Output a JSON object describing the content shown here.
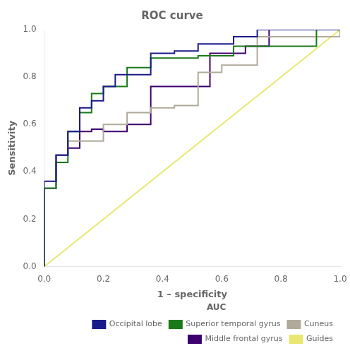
{
  "chart_data": {
    "type": "line",
    "title": "ROC curve",
    "xlabel": "1 – specificity",
    "ylabel": "Sensitivity",
    "xlim": [
      0.0,
      1.0
    ],
    "ylim": [
      0.0,
      1.0
    ],
    "xticks": [
      {
        "value": 0.0,
        "label": "0.0"
      },
      0.2,
      0.4,
      0.6,
      0.8,
      {
        "value": 1.0,
        "label": "1.0"
      }
    ],
    "yticks": [
      {
        "value": 0.0,
        "label": "0.0"
      },
      0.2,
      0.4,
      0.6,
      0.8,
      {
        "value": 1.0,
        "label": "1.0"
      }
    ],
    "grid": false,
    "legend": "lower right",
    "legend_title": "AUC",
    "series": [
      {
        "name": "Occipital lobe",
        "type": "step",
        "color": "#1a1a8c",
        "x": [
          0.0,
          0.0,
          0.04,
          0.04,
          0.08,
          0.08,
          0.12,
          0.12,
          0.16,
          0.16,
          0.2,
          0.2,
          0.24,
          0.24,
          0.36,
          0.36,
          0.44,
          0.44,
          0.52,
          0.52,
          0.64,
          0.64,
          0.72,
          0.72,
          0.84,
          0.84,
          1.0
        ],
        "values": [
          0.0,
          0.36,
          0.36,
          0.47,
          0.47,
          0.57,
          0.57,
          0.67,
          0.67,
          0.7,
          0.7,
          0.76,
          0.76,
          0.81,
          0.81,
          0.9,
          0.9,
          0.91,
          0.91,
          0.94,
          0.94,
          0.97,
          0.97,
          1.0,
          1.0,
          1.0,
          1.0
        ]
      },
      {
        "name": "Superior temporal gyrus",
        "type": "step",
        "color": "#1a7a1a",
        "x": [
          0.0,
          0.0,
          0.04,
          0.04,
          0.08,
          0.08,
          0.12,
          0.12,
          0.16,
          0.16,
          0.2,
          0.2,
          0.28,
          0.28,
          0.36,
          0.36,
          0.44,
          0.44,
          0.52,
          0.52,
          0.64,
          0.64,
          0.8,
          0.8,
          0.92,
          0.92,
          1.0
        ],
        "values": [
          0.0,
          0.33,
          0.33,
          0.44,
          0.44,
          0.57,
          0.57,
          0.65,
          0.65,
          0.73,
          0.73,
          0.76,
          0.76,
          0.84,
          0.84,
          0.88,
          0.88,
          0.88,
          0.88,
          0.89,
          0.89,
          0.93,
          0.93,
          0.93,
          0.93,
          1.0,
          1.0
        ]
      },
      {
        "name": "Cuneus",
        "type": "step",
        "color": "#b0aa99",
        "x": [
          0.0,
          0.0,
          0.04,
          0.04,
          0.08,
          0.08,
          0.12,
          0.12,
          0.2,
          0.2,
          0.28,
          0.28,
          0.36,
          0.36,
          0.44,
          0.44,
          0.52,
          0.52,
          0.6,
          0.6,
          0.72,
          0.72,
          0.8,
          0.8,
          1.0
        ],
        "values": [
          0.0,
          0.33,
          0.33,
          0.47,
          0.47,
          0.53,
          0.53,
          0.53,
          0.53,
          0.6,
          0.6,
          0.65,
          0.65,
          0.67,
          0.67,
          0.68,
          0.68,
          0.82,
          0.82,
          0.85,
          0.85,
          0.97,
          0.97,
          0.97,
          1.0
        ]
      },
      {
        "name": "Middle frontal gyrus",
        "type": "step",
        "color": "#3d006e",
        "x": [
          0.0,
          0.0,
          0.04,
          0.04,
          0.08,
          0.08,
          0.12,
          0.12,
          0.16,
          0.16,
          0.2,
          0.2,
          0.28,
          0.28,
          0.36,
          0.36,
          0.44,
          0.44,
          0.56,
          0.56,
          0.68,
          0.68,
          0.76,
          0.76,
          0.84,
          0.84,
          1.0
        ],
        "values": [
          0.0,
          0.33,
          0.33,
          0.47,
          0.47,
          0.5,
          0.5,
          0.57,
          0.57,
          0.58,
          0.58,
          0.57,
          0.57,
          0.6,
          0.6,
          0.76,
          0.76,
          0.76,
          0.76,
          0.9,
          0.9,
          0.93,
          0.93,
          1.0,
          1.0,
          1.0,
          1.0
        ]
      },
      {
        "name": "Guides",
        "type": "line",
        "color": "#e8e870",
        "x": [
          0.0,
          1.0
        ],
        "values": [
          0.0,
          1.0
        ]
      }
    ]
  }
}
